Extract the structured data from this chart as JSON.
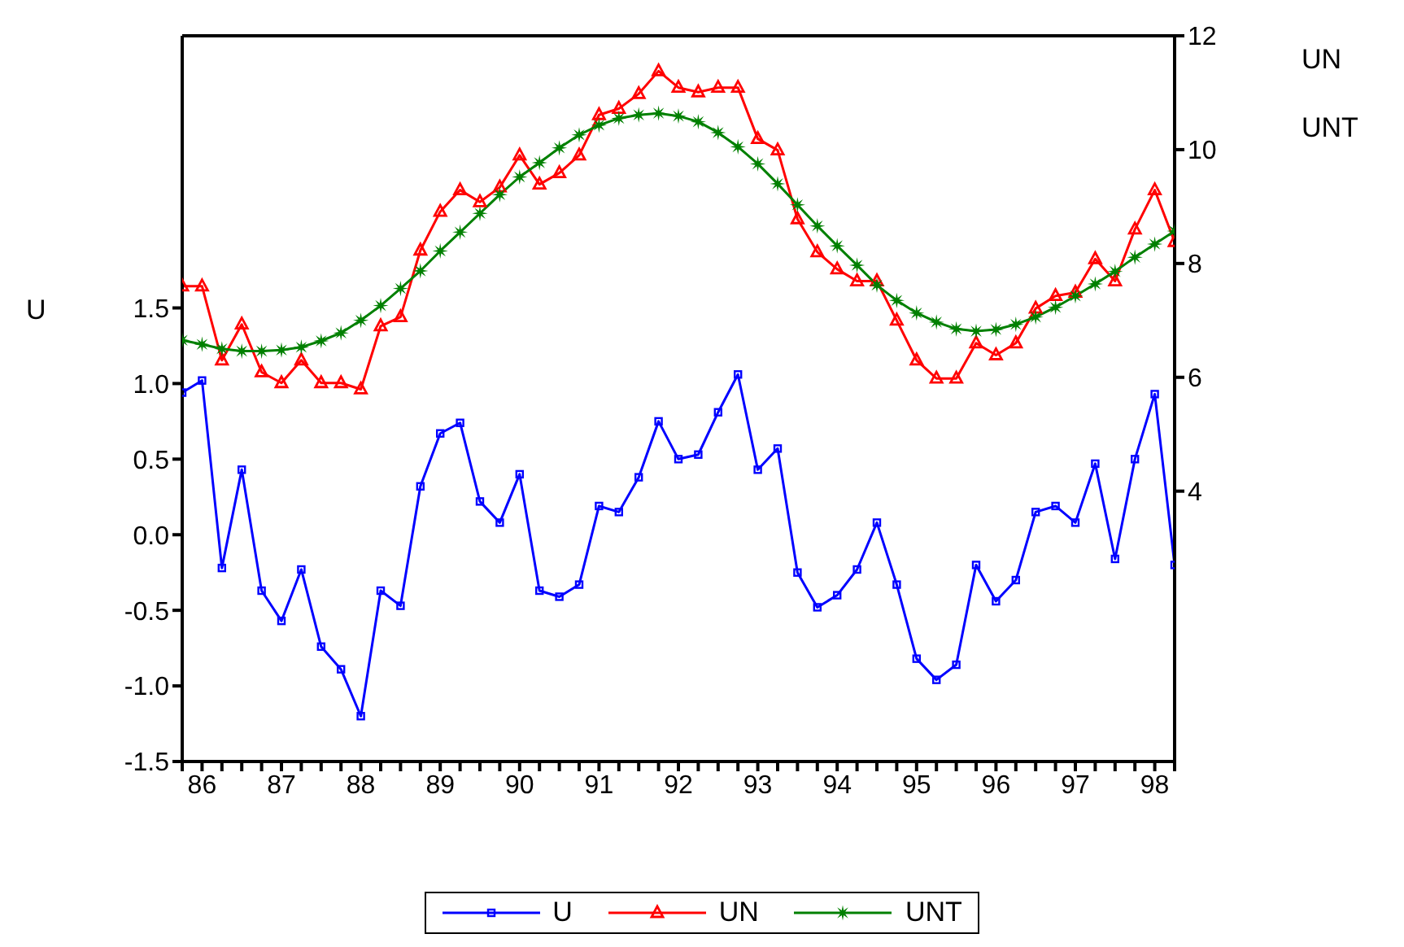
{
  "chart_data": {
    "type": "line",
    "ylabel": "U",
    "y2label": "UN\nUNT",
    "categories": [
      null,
      "86",
      null,
      null,
      null,
      "87",
      null,
      null,
      null,
      "88",
      null,
      null,
      null,
      "89",
      null,
      null,
      null,
      "90",
      null,
      null,
      null,
      "91",
      null,
      null,
      null,
      "92",
      null,
      null,
      null,
      "93",
      null,
      null,
      null,
      "94",
      null,
      null,
      null,
      "95",
      null,
      null,
      null,
      "96",
      null,
      null,
      null,
      "97",
      null,
      null,
      null,
      "98",
      null
    ],
    "series": [
      {
        "name": "U",
        "color": "#0000ff",
        "marker": "square",
        "values": [
          0.94,
          1.02,
          -0.22,
          0.43,
          -0.37,
          -0.57,
          -0.23,
          -0.74,
          -0.89,
          -1.2,
          -0.37,
          -0.47,
          0.32,
          0.67,
          0.74,
          0.22,
          0.08,
          0.4,
          -0.37,
          -0.41,
          -0.33,
          0.19,
          0.15,
          0.38,
          0.75,
          0.5,
          0.53,
          0.81,
          1.06,
          0.43,
          0.57,
          -0.25,
          -0.48,
          -0.4,
          -0.23,
          0.08,
          -0.33,
          -0.82,
          -0.96,
          -0.86,
          -0.2,
          -0.44,
          -0.3,
          0.15,
          0.19,
          0.08,
          0.47,
          -0.16,
          0.5,
          0.93,
          -0.2
        ]
      },
      {
        "name": "UN",
        "color": "#ff0000",
        "marker": "triangle",
        "axis": "y2",
        "values": [
          7.6,
          7.6,
          6.3,
          6.93,
          6.09,
          5.9,
          6.3,
          5.9,
          5.9,
          5.79,
          6.9,
          7.06,
          8.23,
          8.91,
          9.29,
          9.08,
          9.34,
          9.9,
          9.39,
          9.59,
          9.9,
          10.61,
          10.72,
          10.98,
          11.38,
          11.09,
          11.01,
          11.09,
          11.09,
          10.19,
          9.99,
          8.78,
          8.2,
          7.9,
          7.69,
          7.69,
          7,
          6.3,
          5.98,
          5.98,
          6.6,
          6.39,
          6.6,
          7.21,
          7.43,
          7.49,
          8.08,
          7.69,
          8.6,
          9.29,
          8.38
        ]
      },
      {
        "name": "UNT",
        "color": "#008000",
        "marker": "star",
        "axis": "y2",
        "values": [
          6.65,
          6.58,
          6.5,
          6.46,
          6.46,
          6.48,
          6.53,
          6.64,
          6.78,
          7,
          7.26,
          7.56,
          7.87,
          8.22,
          8.55,
          8.88,
          9.21,
          9.52,
          9.77,
          10.03,
          10.26,
          10.43,
          10.55,
          10.61,
          10.64,
          10.59,
          10.49,
          10.3,
          10.05,
          9.75,
          9.4,
          9.03,
          8.66,
          8.31,
          7.97,
          7.62,
          7.35,
          7.13,
          6.97,
          6.85,
          6.81,
          6.84,
          6.93,
          7.06,
          7.23,
          7.43,
          7.64,
          7.86,
          8.11,
          8.34,
          8.57
        ]
      }
    ],
    "ylim": [
      -1.5,
      3.3
    ],
    "yticks": [
      {
        "value": -1.5,
        "label": "-1.5"
      },
      {
        "value": -1,
        "label": "-1.0"
      },
      {
        "value": -0.5,
        "label": "-0.5"
      },
      {
        "value": 0,
        "label": "0.0"
      },
      {
        "value": 0.5,
        "label": "0.5"
      },
      {
        "value": 1,
        "label": "1.0"
      },
      {
        "value": 1.5,
        "label": "1.5"
      }
    ],
    "y2lim": [
      -0.75,
      12
    ],
    "y2ticks": [
      4,
      6,
      8,
      10,
      12
    ],
    "legend": "bottom",
    "grid": false,
    "line_style": "solid"
  }
}
